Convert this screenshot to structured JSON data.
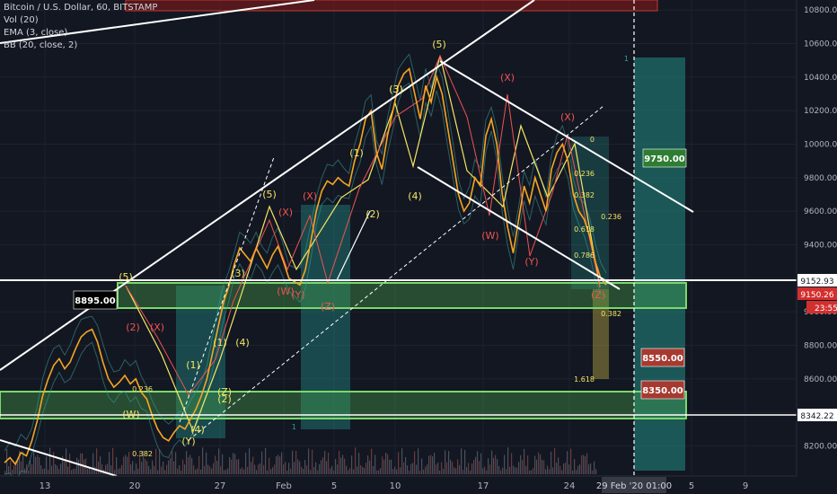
{
  "header": {
    "title": "Bitcoin / U.S. Dollar, 60, BITSTAMP",
    "indicators": [
      "Vol (20)",
      "EMA (3, close)",
      "BB (20, close, 2)"
    ]
  },
  "chart_data": {
    "type": "line",
    "symbol": "BTCUSD",
    "timeframe": "60",
    "exchange": "BITSTAMP",
    "y_axis": {
      "ticks": [
        8200,
        8400,
        8600,
        8800,
        9000,
        9200,
        9400,
        9600,
        9800,
        10000,
        10200,
        10400,
        10600,
        10800
      ],
      "tick_labels": [
        "8200.00",
        "8400.00",
        "8600.00",
        "8800.00",
        "9000.00",
        "9200.00",
        "9400.00",
        "9600.00",
        "9800.00",
        "10000.00",
        "10200.00",
        "10400.00",
        "10600.00",
        "10800.00"
      ],
      "range": [
        8020,
        10860
      ]
    },
    "x_axis": {
      "tick_labels": [
        "13",
        "20",
        "27",
        "Feb",
        "5",
        "10",
        "17",
        "24",
        "5",
        "9"
      ],
      "cursor_label": "29 Feb '20   01:00"
    },
    "series": [
      {
        "values": [
          8100,
          8130,
          8090,
          8160,
          8140,
          8230,
          8350,
          8500,
          8600,
          8680,
          8720,
          8660,
          8700,
          8780,
          8850,
          8880,
          8895,
          8820,
          8700,
          8600,
          8550,
          8580,
          8620,
          8570,
          8600,
          8520,
          8480,
          8380,
          8300,
          8250,
          8230,
          8280,
          8320,
          8300,
          8360,
          8420,
          8500,
          8600,
          8750,
          8900,
          9050,
          9150,
          9280,
          9380,
          9340,
          9300,
          9380,
          9320,
          9260,
          9340,
          9390,
          9300,
          9200,
          9180,
          9160,
          9250,
          9420,
          9600,
          9720,
          9780,
          9760,
          9800,
          9770,
          9750,
          9900,
          10000,
          10150,
          10200,
          9950,
          9850,
          10050,
          10200,
          10350,
          10420,
          10450,
          10300,
          10150,
          10350,
          10250,
          10400,
          10300,
          10100,
          9900,
          9700,
          9600,
          9650,
          9800,
          9750,
          10050,
          10150,
          10000,
          9700,
          9500,
          9350,
          9550,
          9750,
          9650,
          9800,
          9700,
          9600,
          9850,
          9950,
          10000,
          9900,
          9700,
          9600,
          9550,
          9450,
          9300,
          9200,
          9160
        ]
      }
    ],
    "price_labels": [
      {
        "text": "9750.00",
        "color": "#2e7d32"
      },
      {
        "text": "8895.00",
        "color": "#000000"
      },
      {
        "text": "8550.00",
        "color": "#a63a30"
      },
      {
        "text": "8350.00",
        "color": "#a63a30"
      }
    ],
    "axis_labels": [
      {
        "text": "9152.93",
        "color": "#ffffff"
      },
      {
        "text": "9150.26",
        "color": "#d32f2f"
      },
      {
        "text": "23:55",
        "color": "#d32f2f"
      },
      {
        "text": "8342.22",
        "color": "#ffffff"
      }
    ],
    "wave_labels": [
      "(5)",
      "(3)",
      "(1)",
      "(4)",
      "(2)",
      "(5)",
      "(X)",
      "(X)",
      "(W)",
      "(Y)",
      "(Z)",
      "(3)",
      "(1)",
      "(4)",
      "(2)",
      "(X)",
      "(X)",
      "(W)",
      "(Y)",
      "(Z)",
      "(5)",
      "(3)",
      "(1)",
      "(4)",
      "(2)",
      "(X)",
      "(W)",
      "(Y)",
      "(Z)"
    ],
    "fib_labels": [
      "0",
      "0.236",
      "0.382",
      "0.618",
      "0.786",
      "1",
      "1.618",
      "0.382",
      "0.236",
      "1",
      "0.236",
      "0.382"
    ],
    "colors": {
      "price_line": "#f5a623",
      "wave_yellow": "#f5e663",
      "wave_red": "#ef5350",
      "zone_green": "#4caf50",
      "target_box": "#26a69a",
      "background": "#131722"
    }
  }
}
